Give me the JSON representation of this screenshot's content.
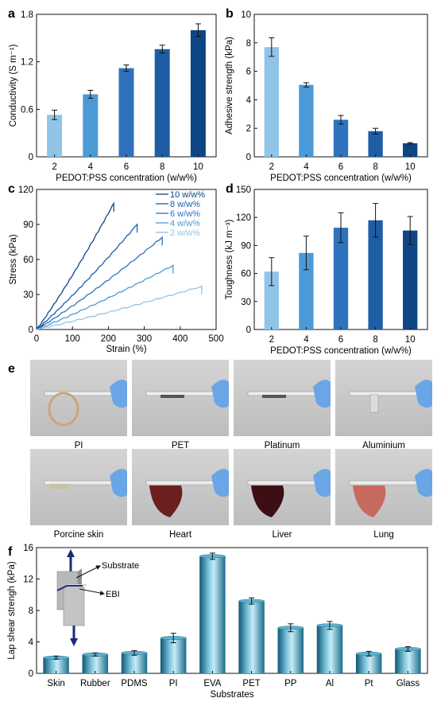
{
  "panels": {
    "a": {
      "letter": "a"
    },
    "b": {
      "letter": "b"
    },
    "c": {
      "letter": "c"
    },
    "d": {
      "letter": "d"
    },
    "e": {
      "letter": "e"
    },
    "f": {
      "letter": "f"
    }
  },
  "photo_labels": [
    "PI",
    "PET",
    "Platinum",
    "Aluminium",
    "Porcine skin",
    "Heart",
    "Liver",
    "Lung"
  ],
  "schematic": {
    "substrate_label": "Substrate",
    "ebi_label": "EBI"
  },
  "colors": {
    "level1": "#90c4e8",
    "level2": "#4b9ad6",
    "level3": "#2e72bd",
    "level4": "#1d5ea5",
    "level5": "#0e4585",
    "teal": "#3a8fb0"
  },
  "chart_data": [
    {
      "id": "a",
      "type": "bar",
      "categories": [
        "2",
        "4",
        "6",
        "8",
        "10"
      ],
      "values": [
        0.53,
        0.79,
        1.12,
        1.36,
        1.6
      ],
      "errors": [
        0.06,
        0.05,
        0.04,
        0.05,
        0.08
      ],
      "xlabel": "PEDOT:PSS concentration (w/w%)",
      "ylabel": "Conductivity (S m⁻¹)",
      "ylim": [
        0,
        1.8
      ],
      "yticks": [
        "0",
        "0.6",
        "1.2",
        "1.8"
      ]
    },
    {
      "id": "b",
      "type": "bar",
      "categories": [
        "2",
        "4",
        "6",
        "8",
        "10"
      ],
      "values": [
        7.7,
        5.05,
        2.6,
        1.8,
        0.95
      ],
      "errors": [
        0.65,
        0.15,
        0.3,
        0.2,
        0.05
      ],
      "xlabel": "PEDOT:PSS concentration (w/w%)",
      "ylabel": "Adhesive strength (kPa)",
      "ylim": [
        0,
        10
      ],
      "yticks": [
        "0",
        "2",
        "4",
        "6",
        "8",
        "10"
      ]
    },
    {
      "id": "c",
      "type": "line",
      "xlabel": "Strain (%)",
      "ylabel": "Stress (kPa)",
      "xlim": [
        0,
        500
      ],
      "ylim": [
        0,
        120
      ],
      "xticks": [
        "0",
        "100",
        "200",
        "300",
        "400",
        "500"
      ],
      "yticks": [
        "0",
        "30",
        "60",
        "90",
        "120"
      ],
      "series": [
        {
          "name": "10 w/w%",
          "end": [
            215,
            108
          ]
        },
        {
          "name": "8 w/w%",
          "end": [
            280,
            90
          ]
        },
        {
          "name": "6 w/w%",
          "end": [
            350,
            79
          ]
        },
        {
          "name": "4 w/w%",
          "end": [
            380,
            55
          ]
        },
        {
          "name": "2 w/w%",
          "end": [
            460,
            37
          ]
        }
      ]
    },
    {
      "id": "d",
      "type": "bar",
      "categories": [
        "2",
        "4",
        "6",
        "8",
        "10"
      ],
      "values": [
        62,
        82,
        109,
        117,
        106
      ],
      "errors": [
        15,
        18,
        16,
        18,
        15
      ],
      "xlabel": "PEDOT:PSS concentration  (w/w%)",
      "ylabel": "Toughness (kJ m⁻³)",
      "ylim": [
        0,
        150
      ],
      "yticks": [
        "0",
        "30",
        "60",
        "90",
        "120",
        "150"
      ]
    },
    {
      "id": "f",
      "type": "bar",
      "categories": [
        "Skin",
        "Rubber",
        "PDMS",
        "PI",
        "EVA",
        "PET",
        "PP",
        "Al",
        "Pt",
        "Glass"
      ],
      "values": [
        2.0,
        2.4,
        2.6,
        4.5,
        14.9,
        9.2,
        5.8,
        6.1,
        2.5,
        3.1
      ],
      "errors": [
        0.2,
        0.2,
        0.3,
        0.6,
        0.4,
        0.4,
        0.5,
        0.5,
        0.3,
        0.3
      ],
      "xlabel": "Substrates",
      "ylabel": "Lap shear strengh (kPa)",
      "ylim": [
        0,
        16
      ],
      "yticks": [
        "0",
        "4",
        "8",
        "12",
        "16"
      ]
    }
  ]
}
